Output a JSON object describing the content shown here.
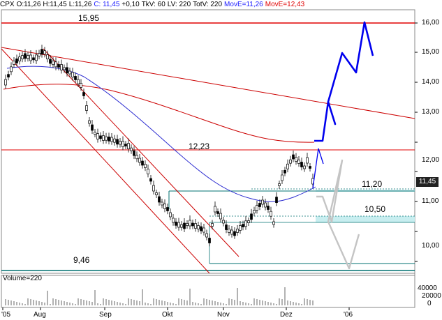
{
  "header": {
    "symbol": "CPX",
    "open": "O:11,26",
    "high": "H:11,45",
    "low": "L:11,26",
    "close": "C: 11,45",
    "change": "+0,10",
    "tkv": "TkV: 60",
    "lv": "LV: 220",
    "totv": "TotV: 220",
    "move1": "MovE=11,26",
    "move2": "MovE=12,43"
  },
  "levels": {
    "top_resistance": "15,95",
    "mid_resistance": "12,23",
    "support_1": "11,20",
    "support_2": "10,50",
    "bottom_support": "9,46"
  },
  "current_price": "11,45",
  "y_axis": [
    "16,00",
    "15,00",
    "14,00",
    "13,00",
    "12,00",
    "11,00",
    "10,00"
  ],
  "x_axis": [
    "'05",
    "Aug",
    "Sep",
    "Okt",
    "Nov",
    "Dez",
    "'06"
  ],
  "volume": {
    "label": "Volume=220",
    "ticks": [
      "40000",
      "20000",
      "0"
    ]
  },
  "colors": {
    "resistance": "#e00000",
    "support": "#007070",
    "ma_short": "#1a1aff",
    "ma_long": "#cc0000",
    "forecast_up": "#0000ee",
    "forecast_down": "#c0c0c0",
    "zone_fill": "#c8eef0"
  }
}
